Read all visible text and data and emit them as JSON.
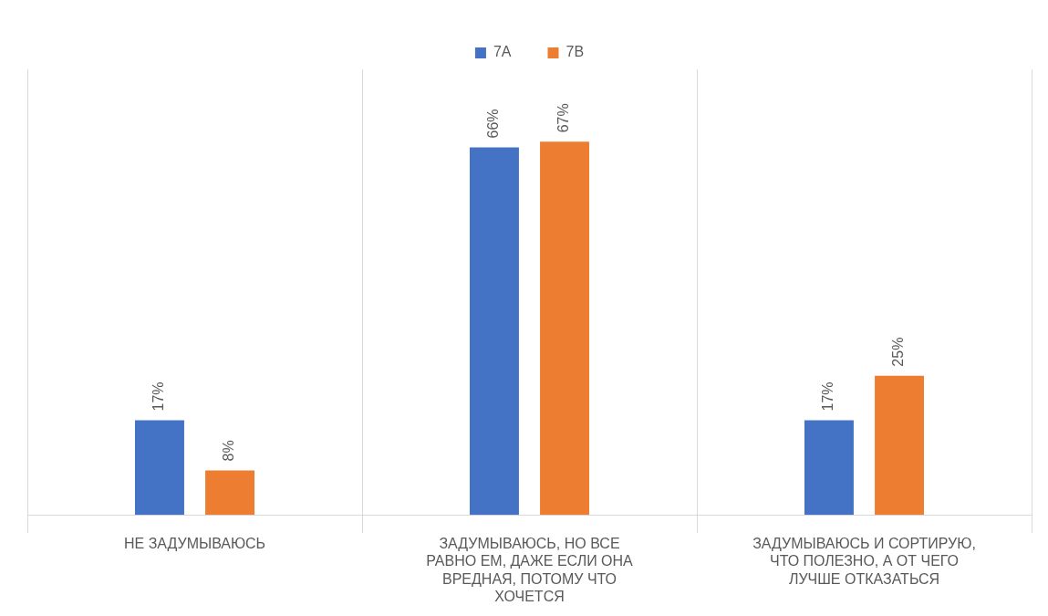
{
  "chart_data": {
    "type": "bar",
    "categories": [
      "НЕ ЗАДУМЫВАЮСЬ",
      "ЗАДУМЫВАЮСЬ, НО ВСЕ РАВНО ЕМ, ДАЖЕ ЕСЛИ ОНА ВРЕДНАЯ, ПОТОМУ ЧТО ХОЧЕТСЯ",
      "ЗАДУМЫВАЮСЬ И СОРТИРУЮ, ЧТО ПОЛЕЗНО, А ОТ ЧЕГО ЛУЧШЕ ОТКАЗАТЬСЯ"
    ],
    "series": [
      {
        "name": "7А",
        "color": "#4472c4",
        "values": [
          17,
          66,
          17
        ],
        "value_labels": [
          "17%",
          "66%",
          "17%"
        ]
      },
      {
        "name": "7В",
        "color": "#ed7d31",
        "values": [
          8,
          67,
          25
        ],
        "value_labels": [
          "8%",
          "67%",
          "25%"
        ]
      }
    ],
    "grid": "x",
    "legend": "top",
    "tick_labels": "x"
  }
}
